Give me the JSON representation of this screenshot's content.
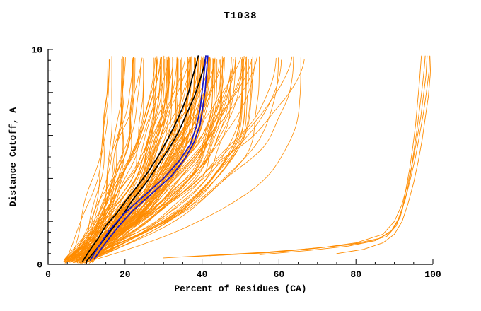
{
  "chart_data": {
    "type": "line",
    "title": "T1038",
    "xlabel": "Percent of Residues (CA)",
    "ylabel": "Distance Cutoff, A",
    "xlim": [
      0,
      100
    ],
    "ylim": [
      0,
      10
    ],
    "x_ticks": [
      0,
      20,
      40,
      60,
      80,
      100
    ],
    "x_minor_step": 5,
    "y_ticks_labeled": [
      0,
      10
    ],
    "y_minor_step": 0.5,
    "y_major_step": 2,
    "grid": false,
    "legend": "none",
    "colors": {
      "ensemble": "#FF8C00",
      "highlight_black": "#000000",
      "highlight_blue": "#1414CC",
      "axis": "#000000",
      "background": "#FFFFFF"
    },
    "ensemble": {
      "description": "dense bundle of model accuracy curves (percent of CA residues under distance cutoff)",
      "count": 130,
      "x_start_range": [
        4,
        12
      ],
      "x_end_groups": [
        {
          "weight": 0.12,
          "range": [
            15,
            28
          ]
        },
        {
          "weight": 0.74,
          "range": [
            28,
            49
          ]
        },
        {
          "weight": 0.14,
          "range": [
            49,
            67
          ]
        }
      ],
      "shape_exponent_range": [
        1.2,
        3.5
      ],
      "wiggle_amplitude_range": [
        0.4,
        1.6
      ],
      "y_top_range": [
        9.5,
        9.7
      ]
    },
    "highlight_black": [
      [
        [
          9,
          0.15
        ],
        [
          11,
          0.7
        ],
        [
          13,
          1.2
        ],
        [
          15,
          1.8
        ],
        [
          17.5,
          2.3
        ],
        [
          20,
          2.9
        ],
        [
          23,
          3.6
        ],
        [
          26,
          4.3
        ],
        [
          28.5,
          5.0
        ],
        [
          31,
          5.8
        ],
        [
          33,
          6.5
        ],
        [
          35,
          7.3
        ],
        [
          36.5,
          8.0
        ],
        [
          37.5,
          8.7
        ],
        [
          38.5,
          9.3
        ],
        [
          39,
          9.7
        ]
      ],
      [
        [
          10,
          0.15
        ],
        [
          13,
          0.8
        ],
        [
          16,
          1.5
        ],
        [
          19,
          2.2
        ],
        [
          22,
          3.0
        ],
        [
          25.5,
          3.8
        ],
        [
          28.5,
          4.6
        ],
        [
          31.5,
          5.4
        ],
        [
          34,
          6.2
        ],
        [
          36,
          7.0
        ],
        [
          38,
          7.8
        ],
        [
          39.5,
          8.6
        ],
        [
          40.5,
          9.2
        ],
        [
          41,
          9.7
        ]
      ]
    ],
    "highlight_blue": [
      [
        [
          11,
          0.2
        ],
        [
          13,
          0.8
        ],
        [
          16,
          1.6
        ],
        [
          20,
          2.4
        ],
        [
          25,
          3.2
        ],
        [
          30,
          4.0
        ],
        [
          34,
          4.8
        ],
        [
          37,
          5.6
        ],
        [
          38.5,
          6.4
        ],
        [
          39.5,
          7.2
        ],
        [
          40,
          8.0
        ],
        [
          40.5,
          8.8
        ],
        [
          41,
          9.7
        ]
      ],
      [
        [
          12,
          0.25
        ],
        [
          14.5,
          0.9
        ],
        [
          18,
          1.7
        ],
        [
          22,
          2.5
        ],
        [
          27,
          3.3
        ],
        [
          32,
          4.1
        ],
        [
          35.5,
          4.9
        ],
        [
          38,
          5.7
        ],
        [
          39.5,
          6.5
        ],
        [
          40.2,
          7.3
        ],
        [
          40.8,
          8.1
        ],
        [
          41.2,
          9.0
        ],
        [
          41.5,
          9.7
        ]
      ]
    ],
    "right_cluster": [
      [
        [
          30,
          0.3
        ],
        [
          45,
          0.45
        ],
        [
          60,
          0.6
        ],
        [
          72,
          0.8
        ],
        [
          82,
          1.0
        ],
        [
          88,
          1.3
        ],
        [
          90.5,
          1.8
        ],
        [
          92,
          2.5
        ],
        [
          93,
          3.5
        ],
        [
          94,
          4.5
        ],
        [
          94.8,
          5.5
        ],
        [
          95.5,
          6.5
        ],
        [
          96,
          7.5
        ],
        [
          96.5,
          8.5
        ],
        [
          97,
          9.7
        ]
      ],
      [
        [
          36,
          0.35
        ],
        [
          52,
          0.5
        ],
        [
          66,
          0.7
        ],
        [
          78,
          0.9
        ],
        [
          86,
          1.2
        ],
        [
          89.5,
          1.6
        ],
        [
          91.5,
          2.2
        ],
        [
          93,
          3.2
        ],
        [
          94.2,
          4.2
        ],
        [
          95,
          5.2
        ],
        [
          95.8,
          6.2
        ],
        [
          96.5,
          7.2
        ],
        [
          97.2,
          8.2
        ],
        [
          97.8,
          9.2
        ],
        [
          98,
          9.7
        ]
      ],
      [
        [
          42,
          0.4
        ],
        [
          58,
          0.55
        ],
        [
          70,
          0.75
        ],
        [
          80,
          1.0
        ],
        [
          87,
          1.4
        ],
        [
          90,
          2.0
        ],
        [
          92,
          2.8
        ],
        [
          93.5,
          3.8
        ],
        [
          94.8,
          4.8
        ],
        [
          95.8,
          5.8
        ],
        [
          96.8,
          6.8
        ],
        [
          97.5,
          7.8
        ],
        [
          98.2,
          8.8
        ],
        [
          98.5,
          9.7
        ]
      ],
      [
        [
          55,
          0.45
        ],
        [
          68,
          0.65
        ],
        [
          78,
          0.85
        ],
        [
          85,
          1.1
        ],
        [
          89,
          1.5
        ],
        [
          91,
          2.1
        ],
        [
          92.8,
          3.0
        ],
        [
          94.2,
          4.0
        ],
        [
          95.5,
          5.0
        ],
        [
          96.5,
          6.0
        ],
        [
          97.5,
          7.0
        ],
        [
          98.3,
          8.0
        ],
        [
          99,
          9.0
        ],
        [
          99.2,
          9.7
        ]
      ],
      [
        [
          75,
          0.5
        ],
        [
          82,
          0.7
        ],
        [
          87,
          1.0
        ],
        [
          90,
          1.4
        ],
        [
          92,
          2.0
        ],
        [
          93.5,
          2.8
        ],
        [
          95,
          3.8
        ],
        [
          96.2,
          4.8
        ],
        [
          97.2,
          5.8
        ],
        [
          98,
          6.8
        ],
        [
          98.8,
          7.8
        ],
        [
          99.3,
          8.8
        ],
        [
          99.5,
          9.7
        ]
      ]
    ]
  }
}
